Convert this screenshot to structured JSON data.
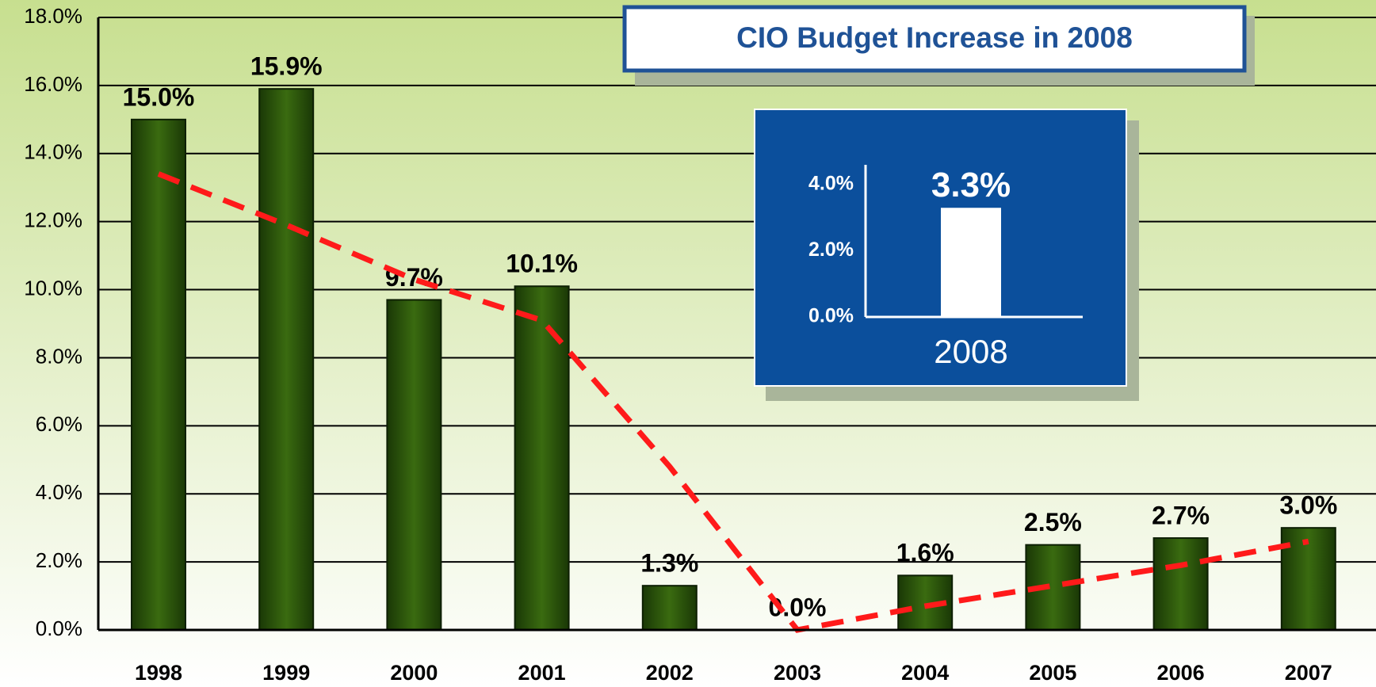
{
  "chart_data": [
    {
      "type": "bar",
      "categories": [
        "1998",
        "1999",
        "2000",
        "2001",
        "2002",
        "2003",
        "2004",
        "2005",
        "2006",
        "2007"
      ],
      "series": [
        {
          "type": "bar",
          "color": "#2f5a0a",
          "values": [
            15.0,
            15.9,
            9.7,
            10.1,
            1.3,
            0.0,
            1.6,
            2.5,
            2.7,
            3.0
          ],
          "value_labels": [
            "15.0%",
            "15.9%",
            "9.7%",
            "10.1%",
            "1.3%",
            "0.0%",
            "1.6%",
            "2.5%",
            "2.7%",
            "3.0%"
          ]
        },
        {
          "type": "line",
          "color": "#ff1a1a",
          "dashed": true,
          "values": [
            13.4,
            11.9,
            10.3,
            9.1,
            4.8,
            0.0,
            0.7,
            1.3,
            1.9,
            2.6
          ]
        }
      ],
      "ylim": [
        0,
        18
      ],
      "yticks": [
        {
          "value": 0,
          "label": "0.0%"
        },
        {
          "value": 2,
          "label": "2.0%"
        },
        {
          "value": 4,
          "label": "4.0%"
        },
        {
          "value": 6,
          "label": "6.0%"
        },
        {
          "value": 8,
          "label": "8.0%"
        },
        {
          "value": 10,
          "label": "10.0%"
        },
        {
          "value": 12,
          "label": "12.0%"
        },
        {
          "value": 14,
          "label": "14.0%"
        },
        {
          "value": 16,
          "label": "16.0%"
        },
        {
          "value": 18,
          "label": "18.0%"
        }
      ],
      "grid": true
    },
    {
      "type": "bar",
      "title": "CIO Budget Increase in 2008",
      "categories": [
        "2008"
      ],
      "series": [
        {
          "type": "bar",
          "color": "#ffffff",
          "values": [
            3.3
          ],
          "value_labels": [
            "3.3%"
          ]
        }
      ],
      "ylim": [
        0,
        4.6
      ],
      "yticks": [
        {
          "value": 0,
          "label": "0.0%"
        },
        {
          "value": 2,
          "label": "2.0%"
        },
        {
          "value": 4,
          "label": "4.0%"
        }
      ],
      "grid": false
    }
  ]
}
